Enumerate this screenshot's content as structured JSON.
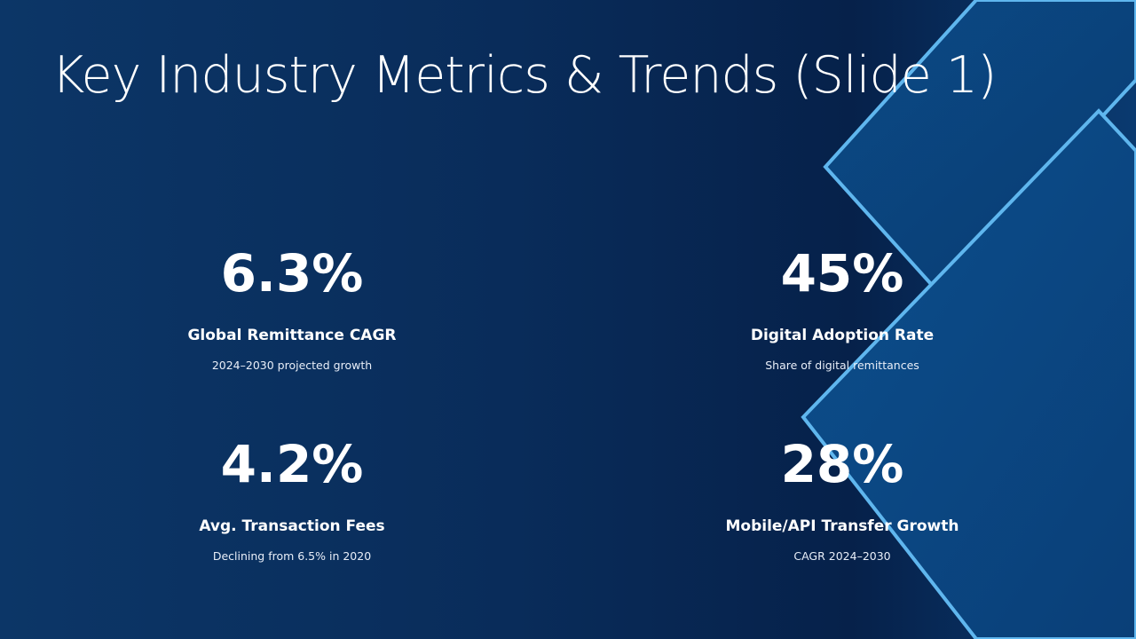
{
  "header": {
    "title": "Key Industry Metrics & Trends (Slide 1)"
  },
  "metrics": [
    {
      "value": "6.3%",
      "label": "Global Remittance CAGR",
      "description": "2024–2030 projected growth"
    },
    {
      "value": "45%",
      "label": "Digital Adoption Rate",
      "description": "Share of digital remittances"
    },
    {
      "value": "4.2%",
      "label": "Avg. Transaction Fees",
      "description": "Declining from 6.5% in 2020"
    },
    {
      "value": "28%",
      "label": "Mobile/API Transfer Growth",
      "description": "CAGR 2024–2030"
    }
  ]
}
